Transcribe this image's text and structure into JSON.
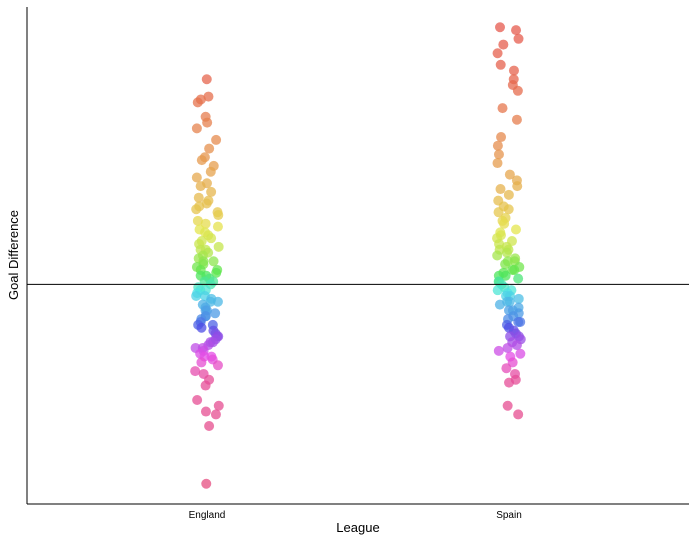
{
  "chart_data": {
    "type": "scatter",
    "title": "",
    "xlabel": "League",
    "ylabel": "Goal Difference",
    "categories": [
      "England",
      "Spain"
    ],
    "ylim": [
      -76,
      96
    ],
    "reference_line_y": 0,
    "grid": false,
    "legend": "none",
    "color_encoding": "hue by goal difference",
    "series": [
      {
        "category": "England",
        "values": [
          71,
          65,
          63,
          64,
          58,
          56,
          54,
          50,
          47,
          44,
          43,
          41,
          39,
          37,
          35,
          34,
          32,
          30,
          29,
          28,
          27,
          26,
          25,
          24,
          22,
          21,
          20,
          19,
          18,
          17,
          16,
          15,
          14,
          13,
          12,
          12,
          11,
          10,
          9,
          8,
          8,
          7,
          6,
          5,
          5,
          4,
          3,
          3,
          2,
          1,
          1,
          0,
          -1,
          -2,
          -2,
          -3,
          -4,
          -4,
          -5,
          -6,
          -6,
          -7,
          -8,
          -9,
          -9,
          -10,
          -11,
          -11,
          -12,
          -13,
          -14,
          -14,
          -15,
          -16,
          -17,
          -18,
          -18,
          -19,
          -20,
          -20,
          -21,
          -22,
          -22,
          -23,
          -24,
          -25,
          -25,
          -26,
          -27,
          -28,
          -30,
          -31,
          -33,
          -35,
          -40,
          -42,
          -44,
          -45,
          -49,
          -69
        ]
      },
      {
        "category": "Spain",
        "values": [
          89,
          88,
          85,
          83,
          80,
          76,
          74,
          71,
          69,
          67,
          61,
          57,
          51,
          48,
          45,
          42,
          38,
          36,
          34,
          33,
          31,
          29,
          27,
          26,
          25,
          23,
          22,
          21,
          19,
          18,
          17,
          16,
          15,
          14,
          13,
          12,
          12,
          11,
          10,
          9,
          8,
          8,
          7,
          6,
          5,
          5,
          4,
          3,
          3,
          2,
          1,
          1,
          0,
          -1,
          -2,
          -2,
          -3,
          -4,
          -4,
          -5,
          -6,
          -6,
          -7,
          -8,
          -9,
          -9,
          -10,
          -11,
          -12,
          -13,
          -13,
          -14,
          -15,
          -16,
          -17,
          -18,
          -18,
          -19,
          -20,
          -21,
          -22,
          -23,
          -24,
          -25,
          -27,
          -29,
          -31,
          -33,
          -34,
          -42,
          -45
        ]
      }
    ]
  }
}
